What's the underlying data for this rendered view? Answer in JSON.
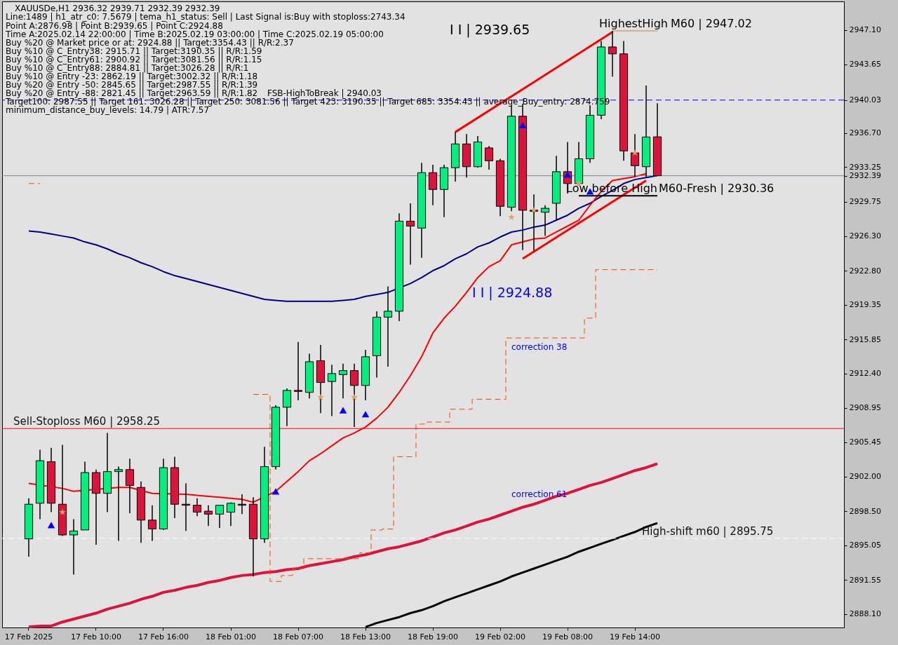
{
  "chart_data": {
    "type": "candlestick",
    "categories": [
      "17 Feb 2025",
      null,
      null,
      null,
      null,
      null,
      "17 Feb 10:00",
      null,
      null,
      null,
      null,
      null,
      "17 Feb 16:00",
      null,
      null,
      null,
      null,
      null,
      "18 Feb 01:00",
      null,
      null,
      null,
      null,
      null,
      "18 Feb 07:00",
      null,
      null,
      null,
      null,
      null,
      "18 Feb 13:00",
      null,
      null,
      null,
      null,
      null,
      "18 Feb 19:00",
      null,
      null,
      null,
      null,
      null,
      "19 Feb 02:00",
      null,
      null,
      null,
      null,
      null,
      "19 Feb 08:00",
      null,
      null,
      null,
      null,
      null,
      "19 Feb 14:00",
      null,
      null
    ],
    "ohlc": [
      [
        2895.7,
        2899.8,
        2893.9,
        2899.2
      ],
      [
        2899.3,
        2904.7,
        2897.7,
        2903.6
      ],
      [
        2903.5,
        2904.9,
        2898.4,
        2899.3
      ],
      [
        2899.2,
        2905.2,
        2896.0,
        2896.1
      ],
      [
        2896.1,
        2897.7,
        2892.1,
        2896.5
      ],
      [
        2896.6,
        2903.5,
        2896.6,
        2902.4
      ],
      [
        2902.4,
        2902.7,
        2895.1,
        2900.3
      ],
      [
        2900.3,
        2906.4,
        2898.4,
        2902.5
      ],
      [
        2902.5,
        2903.0,
        2895.5,
        2902.7
      ],
      [
        2902.7,
        2903.8,
        2898.3,
        2901.1
      ],
      [
        2900.9,
        2901.5,
        2895.3,
        2897.6
      ],
      [
        2897.6,
        2899.1,
        2895.5,
        2896.7
      ],
      [
        2896.7,
        2903.8,
        2896.6,
        2902.9
      ],
      [
        2902.9,
        2904.0,
        2897.8,
        2899.2
      ],
      [
        2899.2,
        2901.3,
        2896.5,
        2899.1
      ],
      [
        2899.1,
        2899.8,
        2898.0,
        2898.4
      ],
      [
        2898.5,
        2899.1,
        2897.0,
        2898.2
      ],
      [
        2898.2,
        2899.1,
        2896.8,
        2899.1
      ],
      [
        2898.4,
        2899.4,
        2897.0,
        2899.3
      ],
      [
        2899.2,
        2900.2,
        2898.2,
        2899.1
      ],
      [
        2899.2,
        2899.9,
        2891.9,
        2895.7
      ],
      [
        2895.7,
        2905.0,
        2895.3,
        2903.0
      ],
      [
        2903.0,
        2909.2,
        2902.7,
        2909.0
      ],
      [
        2909.0,
        2910.9,
        2907.1,
        2910.7
      ],
      [
        2910.7,
        2915.6,
        2909.7,
        2910.6
      ],
      [
        2910.5,
        2914.4,
        2909.9,
        2913.6
      ],
      [
        2913.7,
        2915.3,
        2908.4,
        2911.5
      ],
      [
        2911.6,
        2913.3,
        2908.1,
        2912.4
      ],
      [
        2912.3,
        2913.4,
        2909.9,
        2912.7
      ],
      [
        2912.7,
        2913.4,
        2907.0,
        2911.2
      ],
      [
        2911.2,
        2914.8,
        2909.7,
        2914.1
      ],
      [
        2914.2,
        2918.7,
        2912.0,
        2918.1
      ],
      [
        2918.1,
        2921.2,
        2913.1,
        2918.7
      ],
      [
        2918.7,
        2928.6,
        2917.7,
        2927.8
      ],
      [
        2927.8,
        2929.6,
        2923.4,
        2927.3
      ],
      [
        2927.1,
        2933.7,
        2924.1,
        2932.7
      ],
      [
        2932.7,
        2933.5,
        2929.4,
        2931.0
      ],
      [
        2931.0,
        2933.5,
        2928.2,
        2933.2
      ],
      [
        2933.2,
        2936.8,
        2931.8,
        2935.6
      ],
      [
        2935.6,
        2936.6,
        2932.2,
        2933.3
      ],
      [
        2933.3,
        2936.4,
        2933.2,
        2935.8
      ],
      [
        2935.2,
        2935.4,
        2933.0,
        2933.9
      ],
      [
        2933.9,
        2934.1,
        2928.3,
        2929.3
      ],
      [
        2929.2,
        2939.5,
        2928.8,
        2938.4
      ],
      [
        2938.4,
        2939.65,
        2924.88,
        2928.9
      ],
      [
        2928.9,
        2930.5,
        2924.8,
        2928.8
      ],
      [
        2928.7,
        2929.4,
        2926.3,
        2929.1
      ],
      [
        2929.6,
        2934.4,
        2927.9,
        2932.8
      ],
      [
        2932.8,
        2935.8,
        2930.6,
        2931.6
      ],
      [
        2931.6,
        2935.8,
        2931.4,
        2934.1
      ],
      [
        2934.1,
        2939.5,
        2933.7,
        2938.5
      ],
      [
        2938.5,
        2946.0,
        2938.1,
        2945.4
      ],
      [
        2945.4,
        2947.02,
        2942.4,
        2944.7
      ],
      [
        2944.7,
        2946.0,
        2933.9,
        2934.9
      ],
      [
        2934.7,
        2936.6,
        2932.3,
        2933.4
      ],
      [
        2933.3,
        2941.5,
        2932.3,
        2936.3
      ],
      [
        2936.32,
        2939.71,
        2932.39,
        2932.39
      ]
    ],
    "colors": [
      "#00f080",
      "#00f080",
      "#dc143c",
      "#dc143c",
      "#00f080",
      "#00f080",
      "#dc143c",
      "#00f080",
      "#00f080",
      "#dc143c",
      "#dc143c",
      "#dc143c",
      "#00f080",
      "#dc143c",
      "#dc143c",
      "#dc143c",
      "#dc143c",
      "#00f080",
      "#00f080",
      "#dc143c",
      "#dc143c",
      "#00f080",
      "#00f080",
      "#00f080",
      "#dc143c",
      "#00f080",
      "#dc143c",
      "#00f080",
      "#00f080",
      "#dc143c",
      "#00f080",
      "#00f080",
      "#00f080",
      "#00f080",
      "#dc143c",
      "#00f080",
      "#dc143c",
      "#00f080",
      "#00f080",
      "#dc143c",
      "#00f080",
      "#dc143c",
      "#dc143c",
      "#00f080",
      "#dc143c",
      "#dc143c",
      "#00f080",
      "#00f080",
      "#dc143c",
      "#00f080",
      "#00f080",
      "#00f080",
      "#dc143c",
      "#dc143c",
      "#dc143c",
      "#00f080",
      "#dc143c"
    ],
    "series": [
      {
        "type": "line",
        "color": "#000080",
        "values": [
          2926.8,
          2926.7,
          2926.5,
          2926.3,
          2926.1,
          2925.7,
          2925.4,
          2925.0,
          2924.5,
          2924.1,
          2923.6,
          2923.2,
          2922.7,
          2922.3,
          2922.0,
          2921.7,
          2921.4,
          2921.1,
          2920.8,
          2920.5,
          2920.2,
          2919.9,
          2919.8,
          2919.7,
          2919.7,
          2919.7,
          2919.7,
          2919.7,
          2919.8,
          2919.9,
          2920.2,
          2920.4,
          2920.6,
          null,
          2921.5,
          2922.1,
          2922.8,
          2923.3,
          2924.0,
          2924.5,
          2925.2,
          2925.6,
          2926.2,
          2926.7,
          2926.9,
          2927.2,
          2927.4,
          2927.9,
          2928.4,
          2929.1,
          2929.6,
          2930.3,
          2930.9,
          2931.6,
          2932.0,
          2932.2,
          2932.4
        ]
      },
      {
        "type": "line",
        "color": "#ff0000",
        "values": [
          2901.3,
          null,
          null,
          2900.8,
          2900.5,
          null,
          null,
          null,
          2900.9,
          2900.9,
          null,
          2900.3,
          null,
          null,
          2900.2,
          2900.1,
          2900.0,
          2899.9,
          2899.8,
          2899.7,
          2899.4,
          null,
          2900.5,
          2901.5,
          2902.5,
          2903.6,
          2904.3,
          2905.1,
          2905.9,
          2906.4,
          2907.0,
          2907.9,
          2909.0,
          2910.5,
          2912.2,
          2914.1,
          2916.5,
          2918.0,
          2919.2,
          2920.6,
          2922.1,
          2923.2,
          2923.8,
          2925.4,
          2925.7,
          2926.0,
          2926.1,
          2926.7,
          2927.3,
          2927.9,
          2929.4,
          2930.8,
          2931.9,
          2932.1,
          2932.3,
          2932.6,
          null
        ]
      },
      {
        "type": "line",
        "color": "#dc143c",
        "values": [
          2886.8,
          2886.9,
          2886.9,
          2887.3,
          2887.6,
          2887.9,
          2888.2,
          2888.6,
          2888.9,
          2889.2,
          2889.6,
          2889.9,
          2890.3,
          2890.5,
          2890.8,
          2891.0,
          2891.3,
          2891.5,
          2891.8,
          2892.0,
          2892.1,
          2892.3,
          2892.4,
          2892.6,
          2892.7,
          2893.0,
          2893.2,
          2893.4,
          2893.6,
          2893.9,
          2894.1,
          2894.4,
          2894.7,
          2894.9,
          2895.2,
          2895.5,
          2895.9,
          2896.3,
          2896.6,
          2897.0,
          2897.4,
          2897.7,
          2898.1,
          2898.5,
          2898.9,
          2899.2,
          2899.6,
          2900.0,
          2900.3,
          2900.7,
          2901.1,
          2901.4,
          2901.8,
          2902.2,
          2902.6,
          2902.9,
          2903.3
        ]
      },
      {
        "type": "line",
        "color": "#000000",
        "values": [
          null,
          null,
          null,
          null,
          null,
          null,
          null,
          null,
          null,
          null,
          null,
          null,
          null,
          null,
          null,
          null,
          null,
          null,
          null,
          null,
          null,
          null,
          null,
          null,
          null,
          null,
          null,
          null,
          null,
          null,
          2886.8,
          2887.2,
          2887.5,
          2887.8,
          2888.2,
          2888.5,
          2888.9,
          2889.4,
          2889.8,
          2890.2,
          2890.6,
          2891.0,
          2891.4,
          2891.9,
          2892.3,
          2892.7,
          2893.1,
          2893.5,
          2893.9,
          2894.4,
          2894.8,
          2895.2,
          2895.6,
          2896.0,
          2896.4,
          2896.9,
          2897.3
        ]
      },
      {
        "type": "step",
        "color": "#ff4500",
        "line_style": "dashed",
        "values": [
          2931.6,
          2931.6,
          null,
          null,
          null,
          null,
          null,
          null,
          null,
          null,
          null,
          null,
          null,
          null,
          null,
          null,
          null,
          null,
          null,
          null,
          2910.3,
          2910.3,
          2891.4,
          2892.0,
          2892.7,
          2893.7,
          2893.7,
          2893.7,
          2893.7,
          2893.7,
          2894.3,
          2896.6,
          2896.7,
          2904.0,
          2904.0,
          2907.3,
          2907.5,
          2907.5,
          2908.8,
          2908.8,
          2909.8,
          2909.8,
          2909.8,
          2916.0,
          2916.0,
          2916.0,
          2916.0,
          2916.0,
          2916.0,
          2916.0,
          2918.0,
          2922.9,
          2922.9,
          2922.9,
          2922.9,
          2922.9,
          2922.9
        ]
      },
      {
        "type": "line",
        "color": "#ff0000",
        "values": [
          null,
          null,
          null,
          null,
          null,
          null,
          null,
          null,
          null,
          null,
          null,
          null,
          null,
          null,
          null,
          null,
          null,
          null,
          null,
          null,
          null,
          null,
          null,
          null,
          null,
          null,
          null,
          null,
          null,
          null,
          null,
          null,
          null,
          null,
          null,
          null,
          null,
          null,
          2936.8,
          null,
          null,
          null,
          null,
          null,
          null,
          null,
          null,
          null,
          null,
          null,
          null,
          null,
          2946.9,
          null,
          null,
          null,
          null
        ]
      },
      {
        "type": "line",
        "color": "#ff0000",
        "values": [
          null,
          null,
          null,
          null,
          null,
          null,
          null,
          null,
          null,
          null,
          null,
          null,
          null,
          null,
          null,
          null,
          null,
          null,
          null,
          null,
          null,
          null,
          null,
          null,
          null,
          null,
          null,
          null,
          null,
          null,
          null,
          null,
          null,
          null,
          null,
          null,
          null,
          null,
          null,
          null,
          null,
          null,
          null,
          null,
          2924.0,
          null,
          null,
          null,
          null,
          null,
          null,
          null,
          null,
          null,
          null,
          2931.9,
          null
        ]
      },
      {
        "type": "line",
        "color": "#d2b48c",
        "values": [
          null,
          null,
          null,
          null,
          null,
          null,
          null,
          null,
          null,
          null,
          null,
          null,
          null,
          null,
          null,
          null,
          null,
          null,
          null,
          null,
          null,
          null,
          null,
          null,
          null,
          null,
          null,
          null,
          null,
          null,
          null,
          null,
          null,
          null,
          null,
          null,
          null,
          null,
          null,
          null,
          null,
          null,
          null,
          null,
          null,
          null,
          null,
          null,
          null,
          null,
          null,
          null,
          2947.02,
          2947.02,
          2947.02,
          2947.02,
          2947.02
        ]
      },
      {
        "type": "line",
        "color": "#000000",
        "values": [
          null,
          null,
          null,
          null,
          null,
          null,
          null,
          null,
          null,
          null,
          null,
          null,
          null,
          null,
          null,
          null,
          null,
          null,
          null,
          null,
          null,
          null,
          null,
          null,
          null,
          null,
          null,
          null,
          null,
          null,
          null,
          null,
          null,
          null,
          null,
          null,
          null,
          null,
          null,
          null,
          null,
          null,
          null,
          null,
          null,
          null,
          null,
          null,
          null,
          2930.36,
          2930.36,
          2930.36,
          2930.36,
          2930.36,
          2930.36,
          2930.36,
          2930.36
        ]
      },
      {
        "type": "scatter",
        "color": "#e0a060",
        "marker": "star",
        "values": [
          null,
          null,
          null,
          2898.4,
          null,
          null,
          null,
          null,
          null,
          null,
          null,
          null,
          null,
          null,
          null,
          null,
          null,
          null,
          null,
          null,
          null,
          null,
          null,
          null,
          null,
          null,
          2910.0,
          null,
          null,
          2910.0,
          null,
          null,
          null,
          null,
          null,
          null,
          null,
          null,
          null,
          null,
          null,
          null,
          null,
          2928.2,
          null,
          2928.9,
          null,
          null,
          null,
          2931.6,
          null,
          null,
          null,
          null,
          2934.7,
          null,
          null
        ]
      },
      {
        "type": "scatter",
        "color": "#0000ff",
        "marker": "triangle",
        "values": [
          null,
          null,
          2897.1,
          null,
          null,
          null,
          null,
          null,
          null,
          null,
          null,
          null,
          null,
          null,
          null,
          null,
          null,
          null,
          null,
          null,
          null,
          null,
          2900.5,
          null,
          null,
          null,
          null,
          null,
          2908.7,
          null,
          2908.3,
          null,
          null,
          null,
          null,
          null,
          null,
          null,
          null,
          null,
          null,
          null,
          null,
          null,
          2937.5,
          null,
          null,
          null,
          2932.5,
          null,
          2930.8,
          null,
          null,
          null,
          null,
          null,
          null
        ]
      }
    ],
    "ylim": [
      2886.75,
      2950.0
    ],
    "yticks": [
      {
        "value": 2947.1,
        "label": "2947.10"
      },
      2943.65,
      2940.03,
      {
        "value": 2936.7,
        "label": "2936.70"
      },
      2933.25,
      2932.39,
      2929.75,
      {
        "value": 2926.3,
        "label": "2926.30"
      },
      {
        "value": 2922.8,
        "label": "2922.80"
      },
      2919.35,
      2915.85,
      {
        "value": 2912.4,
        "label": "2912.40"
      },
      2908.95,
      2905.45,
      {
        "value": 2902,
        "label": "2902.00"
      },
      {
        "value": 2898.5,
        "label": "2898.50"
      },
      2895.05,
      2891.55,
      {
        "value": 2888.1,
        "label": "2888.10"
      }
    ],
    "ref_lines": [
      {
        "axis": "y",
        "value": 2940.03,
        "color": "#0000ff",
        "line_style": "dashed"
      },
      {
        "axis": "y",
        "value": 2932.39,
        "color": "#778899"
      },
      {
        "axis": "y",
        "value": 2906.85,
        "label": "Sell-Stoploss M60 | 2958.25",
        "color": "#ff0000"
      },
      {
        "axis": "y",
        "value": 2895.75,
        "label": "High-shift m60 | 2895.75",
        "color": "#ffffff",
        "line_style": "dashed"
      }
    ],
    "annotations": [
      "XAUUSDe,H1 2936.32 2939.71 2932.39 2932.39",
      "Line:1489 | h1_atr_c0: 7.5679 | tema_h1_status: Sell | Last Signal is:Buy with stoploss:2743.34",
      "Point A:2876.98 | Point B:2939.65 | Point C:2924.88",
      "Time A:2025.02.14 22:00:00 | Time B:2025.02.19 03:00:00 | Time C:2025.02.19 05:00:00",
      "Buy %20 @ Market price or at: 2924.88 || Target:3354.43 || R/R:2.37",
      "Buy %10 @ C_Entry38: 2915.71 || Target:3190.35 || R/R:1.59",
      "Buy %10 @ C_Entry61: 2900.92 || Target:3081.56 || R/R:1.15",
      "Buy %10 @ C_Entry88: 2884.81 || Target:3026.28 || R/R:1",
      "Buy %10 @ Entry -23: 2862.19 || Target:3002.32 || R/R:1.18",
      "Buy %20 @ Entry -50: 2845.65 || Target:2987.55 || R/R:1.39",
      "Buy %20 @ Entry -88: 2821.45 || Target:2963.59 || R/R:1.82",
      "Target100: 2987.55 || Target 161: 3026.28 || Target 250: 3081.56 || Target 423: 3190.35 || Target 685: 3354.43 || average_Buy_entry: 2874.759",
      "minimum_distance_buy_levels: 14.79 | ATR:7.57",
      "FSB-HighToBreak | 2940.03",
      "I I | 2939.65",
      "I I | 2924.88",
      "HighestHigh",
      "M60 | 2947.02",
      "Low before High",
      "M60-Fresh | 2930.36",
      "correction 38",
      "correction 61"
    ]
  }
}
